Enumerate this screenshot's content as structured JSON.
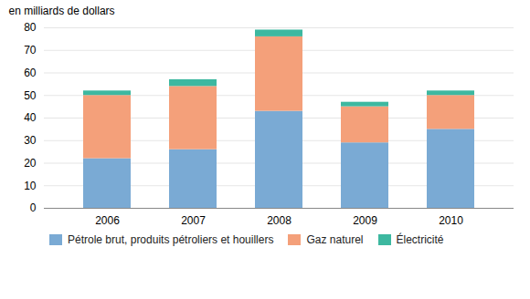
{
  "chart_data": {
    "type": "bar",
    "stacked": true,
    "ylabel": "en milliards de dollars",
    "categories": [
      "2006",
      "2007",
      "2008",
      "2009",
      "2010"
    ],
    "series": [
      {
        "name": "Pétrole brut, produits pétroliers et houillers",
        "color": "#7aaad4",
        "values": [
          22,
          26,
          43,
          29,
          35
        ]
      },
      {
        "name": "Gaz naturel",
        "color": "#f4a07a",
        "values": [
          28,
          28,
          33,
          16,
          15
        ]
      },
      {
        "name": "Électricité",
        "color": "#3db8a0",
        "values": [
          2,
          3,
          3,
          2,
          2
        ]
      }
    ],
    "ylim": [
      0,
      80
    ],
    "yticks": [
      0,
      10,
      20,
      30,
      40,
      50,
      60,
      70,
      80
    ],
    "grid": true,
    "legend": "bottom"
  }
}
